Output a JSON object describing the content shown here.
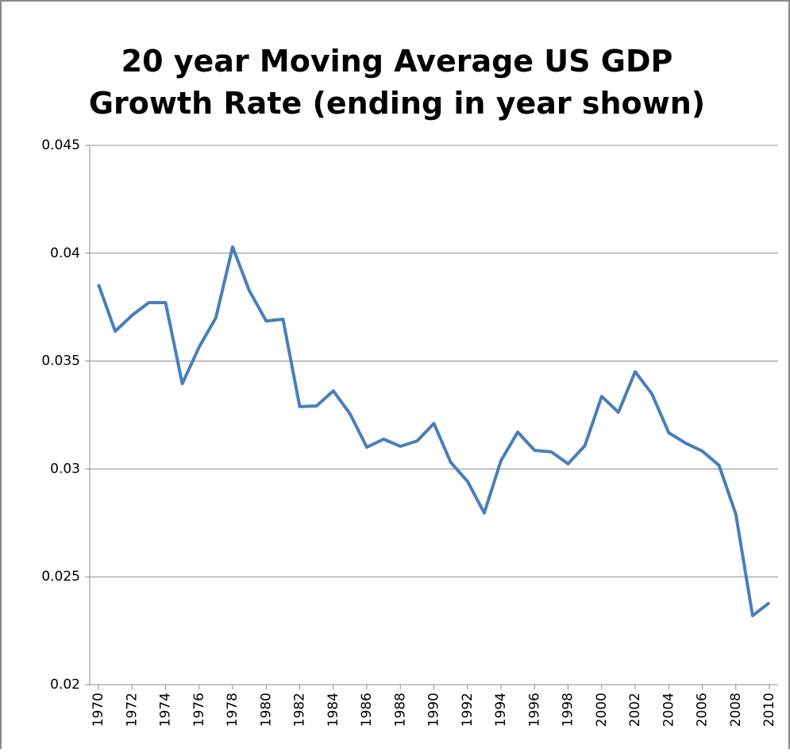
{
  "chart_data": {
    "type": "line",
    "title": [
      "20 year Moving Average US GDP",
      "Growth Rate (ending in year shown)"
    ],
    "x": [
      1970,
      1971,
      1972,
      1973,
      1974,
      1975,
      1976,
      1977,
      1978,
      1979,
      1980,
      1981,
      1982,
      1983,
      1984,
      1985,
      1986,
      1987,
      1988,
      1989,
      1990,
      1991,
      1992,
      1993,
      1994,
      1995,
      1996,
      1997,
      1998,
      1999,
      2000,
      2001,
      2002,
      2003,
      2004,
      2005,
      2006,
      2007,
      2008,
      2009,
      2010
    ],
    "series": [
      {
        "color": "#4a7ebb",
        "values": [
          0.03856,
          0.03638,
          0.03712,
          0.03771,
          0.03771,
          0.03395,
          0.03565,
          0.03701,
          0.04029,
          0.03826,
          0.03686,
          0.03694,
          0.03289,
          0.03292,
          0.03362,
          0.03255,
          0.03101,
          0.03138,
          0.03105,
          0.0313,
          0.03211,
          0.03031,
          0.02943,
          0.02796,
          0.03039,
          0.03171,
          0.03086,
          0.03079,
          0.03024,
          0.03108,
          0.03336,
          0.03263,
          0.03451,
          0.03348,
          0.03168,
          0.0312,
          0.03083,
          0.03017,
          0.0279,
          0.0232,
          0.0238
        ]
      }
    ],
    "xlim": [
      1970,
      2010
    ],
    "xticks": [
      1970,
      1972,
      1974,
      1976,
      1978,
      1980,
      1982,
      1984,
      1986,
      1988,
      1990,
      1992,
      1994,
      1996,
      1998,
      2000,
      2002,
      2004,
      2006,
      2008,
      2010
    ],
    "ylim": [
      0.02,
      0.045
    ],
    "yticks": [
      0.02,
      0.025,
      0.03,
      0.035,
      0.04,
      0.045
    ],
    "grid": true
  }
}
